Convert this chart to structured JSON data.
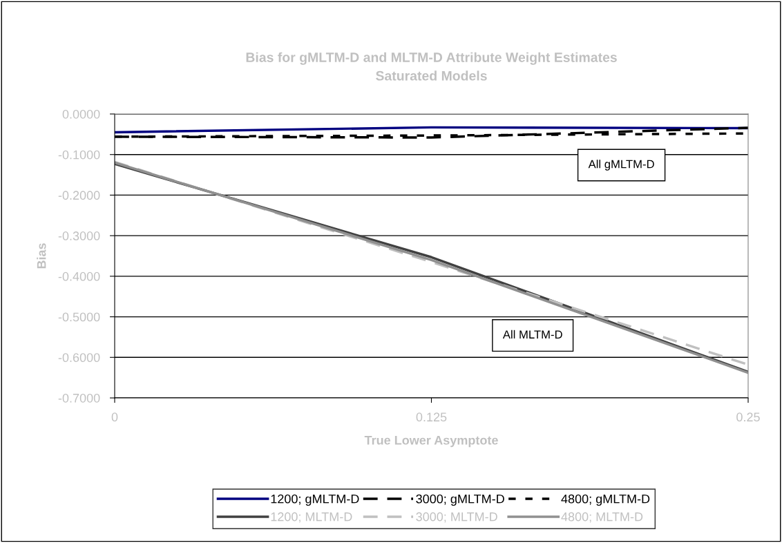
{
  "chart_data": {
    "type": "line",
    "title": "Bias for gMLTM-D and MLTM-D Attribute Weight Estimates\nSaturated Models",
    "xlabel": "True Lower Asymptote",
    "ylabel": "Bias",
    "x": [
      0,
      0.125,
      0.25
    ],
    "series": [
      {
        "name": "1200; gMLTM-D",
        "color": "#000080",
        "line_style": "solid",
        "values": [
          -0.045,
          -0.033,
          -0.035
        ]
      },
      {
        "name": "3000; gMLTM-D",
        "color": "#000000",
        "line_style": "dashed",
        "values": [
          -0.056,
          -0.058,
          -0.034
        ]
      },
      {
        "name": "4800; gMLTM-D",
        "color": "#000000",
        "line_style": "dotted",
        "values": [
          -0.056,
          -0.053,
          -0.048
        ]
      },
      {
        "name": "1200; MLTM-D",
        "color": "#404040",
        "line_style": "solid",
        "values": [
          -0.123,
          -0.353,
          -0.636
        ]
      },
      {
        "name": "3000; MLTM-D",
        "color": "#c0c0c0",
        "line_style": "dashed",
        "values": [
          -0.118,
          -0.365,
          -0.618
        ]
      },
      {
        "name": "4800; MLTM-D",
        "color": "#909090",
        "line_style": "solid",
        "values": [
          -0.12,
          -0.36,
          -0.638
        ]
      }
    ],
    "xlim": [
      0,
      0.25
    ],
    "xticks": [
      0,
      0.125,
      0.25
    ],
    "ylim": [
      -0.7,
      0
    ],
    "yticks": [
      {
        "value": -0.7,
        "label": "-0.7000"
      },
      {
        "value": -0.6,
        "label": "-0.6000"
      },
      {
        "value": -0.5,
        "label": "-0.5000"
      },
      {
        "value": -0.4,
        "label": "-0.4000"
      },
      {
        "value": -0.3,
        "label": "-0.3000"
      },
      {
        "value": -0.2,
        "label": "-0.2000"
      },
      {
        "value": -0.1,
        "label": "-0.1000"
      },
      {
        "value": 0,
        "label": "0.0000"
      }
    ],
    "grid": "y",
    "legend": "bottom",
    "marker": "none",
    "annotations": [
      "All gMLTM-D",
      "All MLTM-D"
    ]
  }
}
